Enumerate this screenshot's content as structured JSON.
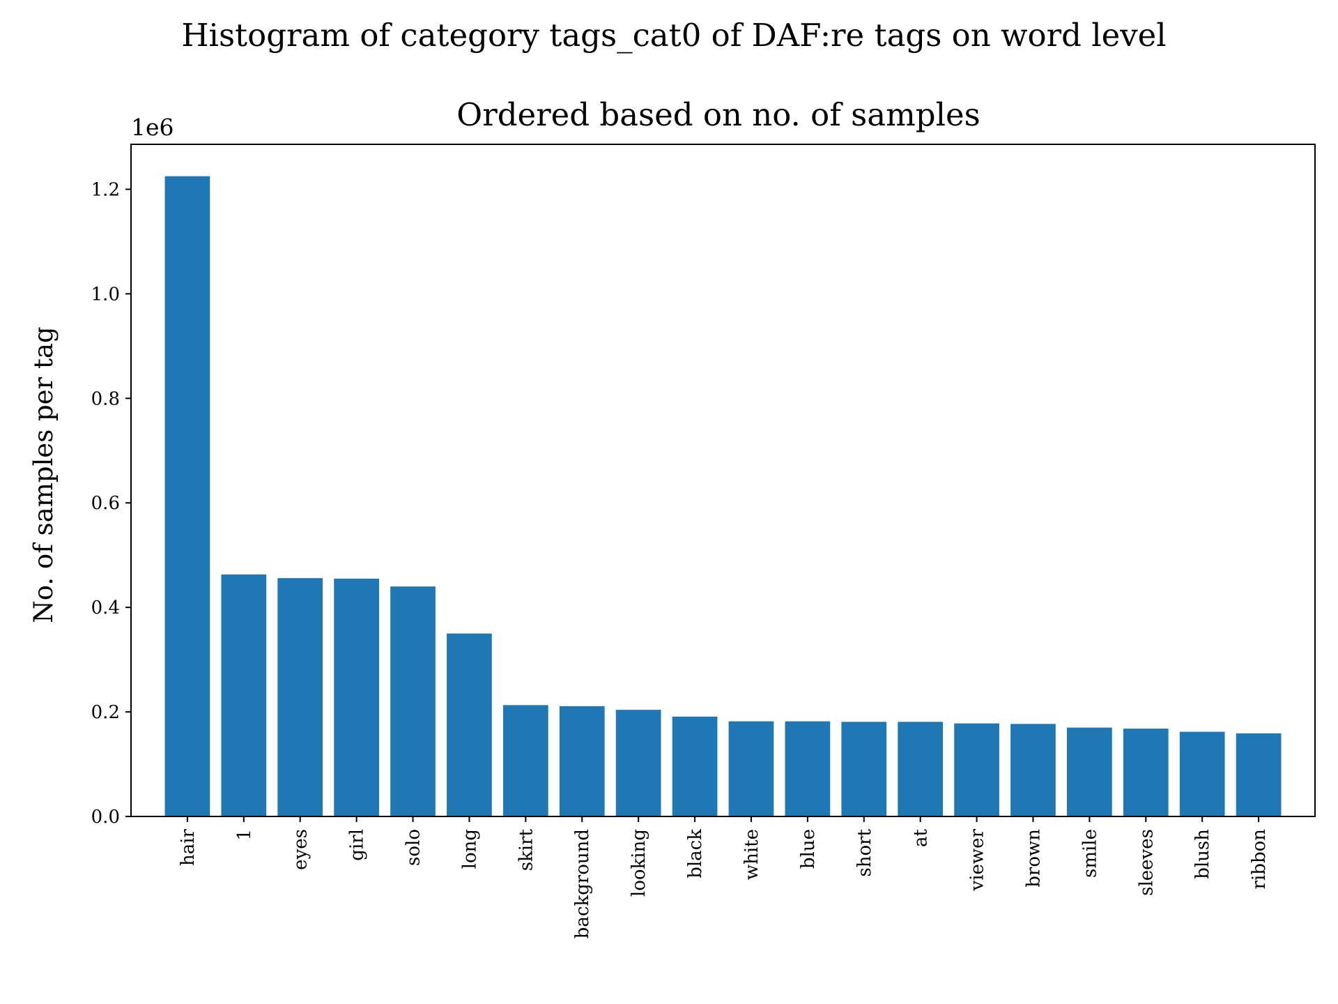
{
  "chart_data": {
    "type": "bar",
    "suptitle": "Histogram of category tags_cat0 of DAF:re tags on word level",
    "title": "Ordered based on no. of samples",
    "xlabel": "",
    "ylabel": "No. of samples per tag",
    "y_offset_text": "1e6",
    "categories": [
      "hair",
      "1",
      "eyes",
      "girl",
      "solo",
      "long",
      "skirt",
      "background",
      "looking",
      "black",
      "white",
      "blue",
      "short",
      "at",
      "viewer",
      "brown",
      "smile",
      "sleeves",
      "blush",
      "ribbon"
    ],
    "values": [
      1225000,
      463000,
      456000,
      455000,
      440000,
      350000,
      213000,
      211000,
      204000,
      191000,
      182000,
      182000,
      181000,
      181000,
      178000,
      177000,
      170000,
      168000,
      162000,
      159000
    ],
    "ylim": [
      0,
      1286000
    ],
    "yticks": [
      0,
      200000,
      400000,
      600000,
      800000,
      1000000,
      1200000
    ],
    "ytick_labels": [
      "0.0",
      "0.2",
      "0.4",
      "0.6",
      "0.8",
      "1.0",
      "1.2"
    ],
    "bar_color": "#1f77b4",
    "grid": false,
    "legend": "none"
  }
}
